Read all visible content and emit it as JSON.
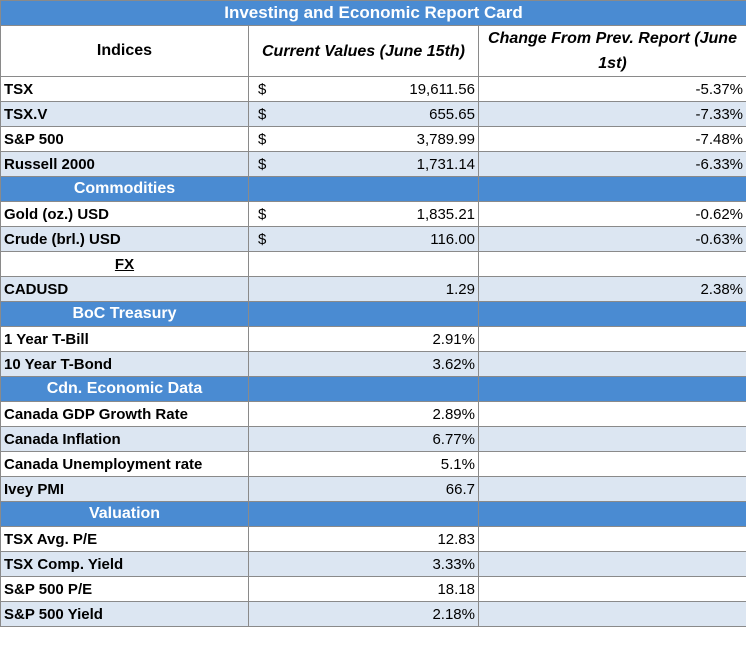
{
  "title": "Investing and Economic Report Card",
  "headers": {
    "indices": "Indices",
    "current": "Current Values (June 15th)",
    "change": "Change From Prev. Report (June 1st)"
  },
  "rows": [
    {
      "kind": "data",
      "shade": "light",
      "name": "TSX",
      "currency": "$",
      "value": "19,611.56",
      "change": "-5.37%"
    },
    {
      "kind": "data",
      "shade": "shaded",
      "name": "TSX.V",
      "currency": "$",
      "value": "655.65",
      "change": "-7.33%"
    },
    {
      "kind": "data",
      "shade": "light",
      "name": "S&P 500",
      "currency": "$",
      "value": "3,789.99",
      "change": "-7.48%"
    },
    {
      "kind": "data",
      "shade": "shaded",
      "name": "Russell 2000",
      "currency": "$",
      "value": "1,731.14",
      "change": "-6.33%"
    },
    {
      "kind": "section",
      "name": "Commodities"
    },
    {
      "kind": "data",
      "shade": "light",
      "name": "Gold (oz.) USD",
      "currency": "$",
      "value": "1,835.21",
      "change": "-0.62%"
    },
    {
      "kind": "data",
      "shade": "shaded",
      "name": "Crude (brl.) USD",
      "currency": "$",
      "value": "116.00",
      "change": "-0.63%"
    },
    {
      "kind": "fx",
      "shade": "light",
      "name": "FX",
      "currency": "",
      "value": "",
      "change": ""
    },
    {
      "kind": "data",
      "shade": "shaded",
      "name": "CADUSD",
      "currency": "",
      "value": "1.29",
      "change": "2.38%"
    },
    {
      "kind": "section",
      "name": "BoC Treasury"
    },
    {
      "kind": "data",
      "shade": "light",
      "name": "1 Year T-Bill",
      "currency": "",
      "value": "2.91%",
      "change": ""
    },
    {
      "kind": "data",
      "shade": "shaded",
      "name": "10 Year T-Bond",
      "currency": "",
      "value": "3.62%",
      "change": ""
    },
    {
      "kind": "section",
      "name": "Cdn. Economic Data"
    },
    {
      "kind": "data",
      "shade": "light",
      "name": "Canada GDP Growth Rate",
      "currency": "",
      "value": "2.89%",
      "change": ""
    },
    {
      "kind": "data",
      "shade": "shaded",
      "name": "Canada Inflation",
      "currency": "",
      "value": "6.77%",
      "change": ""
    },
    {
      "kind": "data",
      "shade": "light",
      "name": "Canada Unemployment rate",
      "currency": "",
      "value": "5.1%",
      "change": ""
    },
    {
      "kind": "data",
      "shade": "shaded",
      "name": "Ivey PMI",
      "currency": "",
      "value": "66.7",
      "change": ""
    },
    {
      "kind": "section",
      "name": "Valuation"
    },
    {
      "kind": "data",
      "shade": "light",
      "name": "TSX Avg. P/E",
      "currency": "",
      "value": "12.83",
      "change": ""
    },
    {
      "kind": "data",
      "shade": "shaded",
      "name": "TSX Comp. Yield",
      "currency": "",
      "value": "3.33%",
      "change": ""
    },
    {
      "kind": "data",
      "shade": "light",
      "name": "S&P 500 P/E",
      "currency": "",
      "value": "18.18",
      "change": ""
    },
    {
      "kind": "data",
      "shade": "shaded",
      "name": "S&P 500 Yield",
      "currency": "",
      "value": "2.18%",
      "change": ""
    }
  ],
  "colors": {
    "header_blue": "#4a8bd2",
    "row_shade": "#dce6f2",
    "grid_line": "#8a8a8a"
  }
}
